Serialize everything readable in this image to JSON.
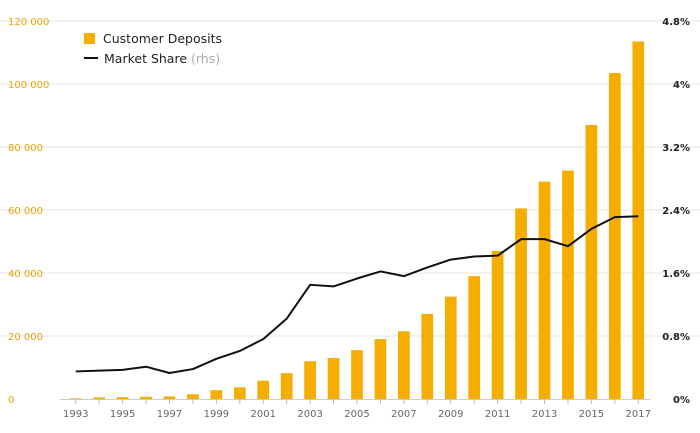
{
  "chart_data": {
    "type": "bar+line",
    "categories": [
      "1993",
      "1994",
      "1995",
      "1996",
      "1997",
      "1998",
      "1999",
      "2000",
      "2001",
      "2002",
      "2003",
      "2004",
      "2005",
      "2006",
      "2007",
      "2008",
      "2009",
      "2010",
      "2011",
      "2012",
      "2013",
      "2014",
      "2015",
      "2016",
      "2017"
    ],
    "x_tick_labels": [
      "1993",
      "1995",
      "1997",
      "1999",
      "2001",
      "2003",
      "2005",
      "2007",
      "2009",
      "2011",
      "2013",
      "2015",
      "2017"
    ],
    "series": [
      {
        "name": "Customer Deposits",
        "type": "bar",
        "axis": "left",
        "values": [
          200,
          500,
          600,
          700,
          800,
          1500,
          2800,
          3700,
          5800,
          8200,
          12000,
          13000,
          15500,
          19000,
          21500,
          27000,
          32500,
          39000,
          47000,
          60500,
          69000,
          72500,
          87000,
          103500,
          113500
        ]
      },
      {
        "name": "Market Share",
        "type": "line",
        "axis": "right",
        "values": [
          0.35,
          0.36,
          0.37,
          0.41,
          0.33,
          0.38,
          0.51,
          0.61,
          0.76,
          1.02,
          1.45,
          1.43,
          1.53,
          1.62,
          1.56,
          1.67,
          1.77,
          1.81,
          1.82,
          2.03,
          2.03,
          1.94,
          2.16,
          2.31,
          2.32
        ]
      }
    ],
    "left_axis": {
      "min": 0,
      "max": 120000,
      "ticks": [
        0,
        20000,
        40000,
        60000,
        80000,
        100000,
        120000
      ],
      "tick_labels": [
        "0",
        "20 000",
        "40 000",
        "60 000",
        "80 000",
        "100 000",
        "120 000"
      ]
    },
    "right_axis": {
      "min": 0,
      "max": 4.8,
      "ticks": [
        0,
        0.8,
        1.6,
        2.4,
        3.2,
        4.0,
        4.8
      ],
      "tick_labels": [
        "0%",
        "0.8%",
        "1.6%",
        "2.4%",
        "3.2%",
        "4%",
        "4.8%"
      ]
    },
    "legend": {
      "items": [
        "Customer Deposits",
        "Market Share"
      ],
      "rhs_note": "(rhs)",
      "position": "top-left"
    },
    "grid": true
  },
  "colors": {
    "bar": "#f5ad00",
    "line": "#111111",
    "left_tick": "#e8a300",
    "grid": "#e6e6e6"
  }
}
